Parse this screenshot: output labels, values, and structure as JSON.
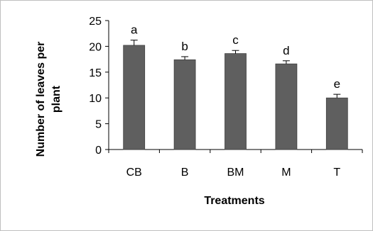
{
  "chart_data": {
    "type": "bar",
    "categories": [
      "CB",
      "B",
      "BM",
      "M",
      "T"
    ],
    "values": [
      20.2,
      17.4,
      18.6,
      16.6,
      10.0
    ],
    "errors": [
      1.0,
      0.6,
      0.6,
      0.6,
      0.7
    ],
    "significance_letters": [
      "a",
      "b",
      "c",
      "d",
      "e"
    ],
    "title": "",
    "xlabel": "Treatments",
    "ylabel_lines": [
      "Number of leaves per",
      "plant"
    ],
    "ylim": [
      0,
      25
    ],
    "yticks": [
      "0",
      "5",
      "10",
      "15",
      "20",
      "25"
    ],
    "grid": false,
    "legend": "none",
    "colors": {
      "bar": "#5f5f5f",
      "bar_edge": "#404040",
      "axis": "#000000",
      "frame": "#bfbfbf"
    }
  }
}
